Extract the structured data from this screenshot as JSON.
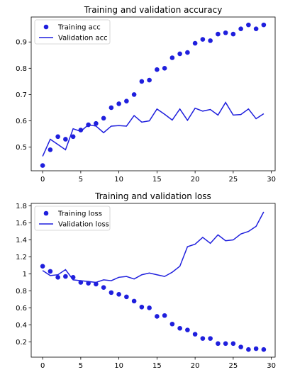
{
  "chart_data": [
    {
      "type": "line",
      "title": "Training and validation accuracy",
      "xlabel": "",
      "ylabel": "",
      "xlim": [
        -1.5,
        30.5
      ],
      "ylim": [
        0.41,
        0.995
      ],
      "xticks": [
        0,
        5,
        10,
        15,
        20,
        25,
        30
      ],
      "yticks": [
        0.5,
        0.6,
        0.7,
        0.8,
        0.9
      ],
      "grid": false,
      "legend_position": "top-left",
      "x": [
        0,
        1,
        2,
        3,
        4,
        5,
        6,
        7,
        8,
        9,
        10,
        11,
        12,
        13,
        14,
        15,
        16,
        17,
        18,
        19,
        20,
        21,
        22,
        23,
        24,
        25,
        26,
        27,
        28,
        29
      ],
      "series": [
        {
          "name": "Training acc",
          "style": "markers",
          "color": "#1f1fdd",
          "values": [
            0.43,
            0.49,
            0.54,
            0.53,
            0.54,
            0.565,
            0.585,
            0.59,
            0.61,
            0.65,
            0.665,
            0.675,
            0.7,
            0.75,
            0.755,
            0.795,
            0.8,
            0.84,
            0.855,
            0.86,
            0.895,
            0.91,
            0.905,
            0.93,
            0.935,
            0.93,
            0.95,
            0.965,
            0.95,
            0.965
          ]
        },
        {
          "name": "Validation acc",
          "style": "line",
          "color": "#1f1fdd",
          "values": [
            0.465,
            0.53,
            0.51,
            0.49,
            0.57,
            0.56,
            0.585,
            0.58,
            0.555,
            0.58,
            0.582,
            0.58,
            0.62,
            0.595,
            0.6,
            0.645,
            0.625,
            0.603,
            0.645,
            0.602,
            0.648,
            0.637,
            0.643,
            0.622,
            0.67,
            0.622,
            0.624,
            0.645,
            0.608,
            0.627
          ]
        }
      ]
    },
    {
      "type": "line",
      "title": "Training and validation loss",
      "xlabel": "",
      "ylabel": "",
      "xlim": [
        -1.5,
        30.5
      ],
      "ylim": [
        0.02,
        1.83
      ],
      "xticks": [
        0,
        5,
        10,
        15,
        20,
        25,
        30
      ],
      "yticks": [
        0.2,
        0.4,
        0.6,
        0.8,
        1.0,
        1.2,
        1.4,
        1.6,
        1.8
      ],
      "grid": false,
      "legend_position": "top-left",
      "x": [
        0,
        1,
        2,
        3,
        4,
        5,
        6,
        7,
        8,
        9,
        10,
        11,
        12,
        13,
        14,
        15,
        16,
        17,
        18,
        19,
        20,
        21,
        22,
        23,
        24,
        25,
        26,
        27,
        28,
        29
      ],
      "series": [
        {
          "name": "Training loss",
          "style": "markers",
          "color": "#1f1fdd",
          "values": [
            1.09,
            1.03,
            0.96,
            0.97,
            0.96,
            0.9,
            0.89,
            0.88,
            0.84,
            0.78,
            0.76,
            0.73,
            0.68,
            0.61,
            0.6,
            0.5,
            0.51,
            0.41,
            0.36,
            0.34,
            0.29,
            0.24,
            0.24,
            0.18,
            0.18,
            0.18,
            0.14,
            0.11,
            0.12,
            0.11
          ]
        },
        {
          "name": "Validation loss",
          "style": "line",
          "color": "#1f1fdd",
          "values": [
            1.04,
            0.98,
            0.99,
            1.05,
            0.93,
            0.92,
            0.91,
            0.9,
            0.93,
            0.92,
            0.96,
            0.97,
            0.94,
            0.99,
            1.01,
            0.99,
            0.97,
            1.02,
            1.09,
            1.32,
            1.35,
            1.43,
            1.36,
            1.46,
            1.39,
            1.4,
            1.47,
            1.5,
            1.56,
            1.73
          ]
        }
      ]
    }
  ]
}
